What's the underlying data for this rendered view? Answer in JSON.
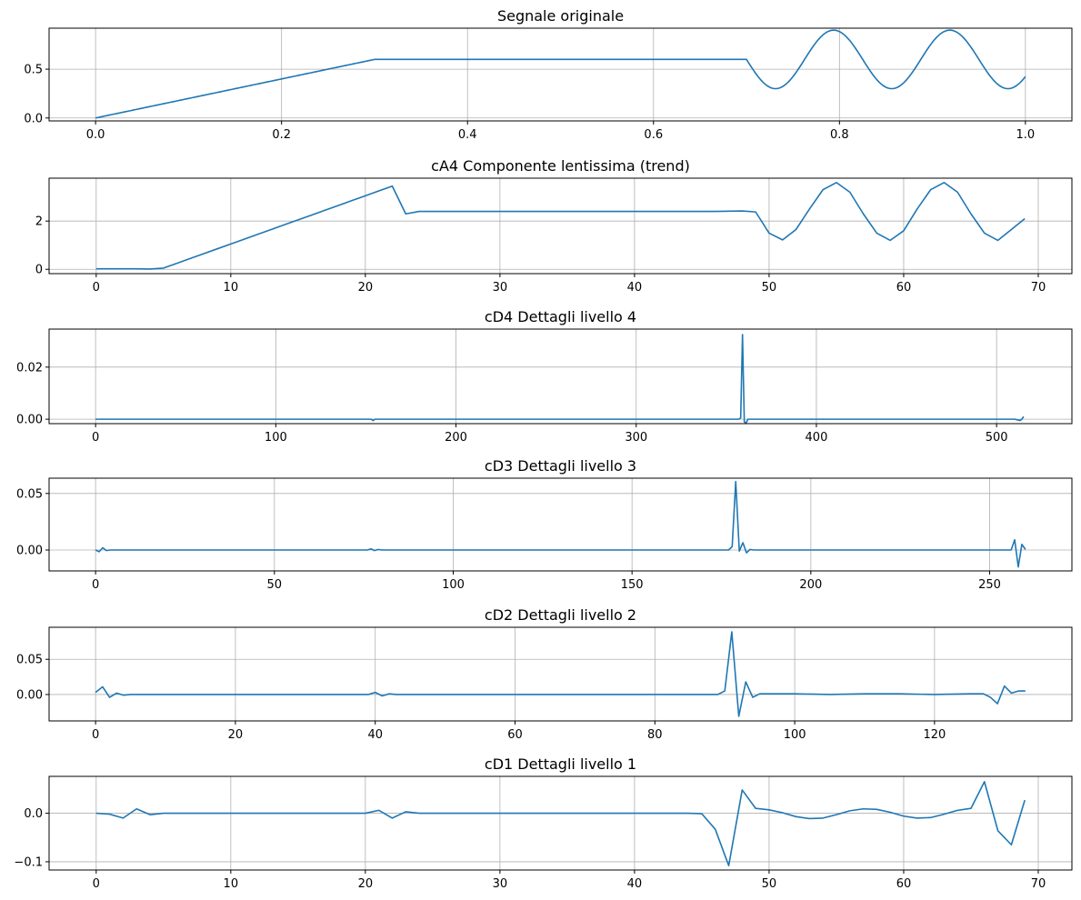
{
  "chart_data": [
    {
      "type": "line",
      "title": "Segnale originale",
      "xlabel": "",
      "ylabel": "",
      "xlim": [
        -0.05,
        1.05
      ],
      "ylim": [
        -0.03,
        0.92
      ],
      "xticks": [
        0.0,
        0.2,
        0.4,
        0.6,
        0.8,
        1.0
      ],
      "xtick_labels": [
        "0.0",
        "0.2",
        "0.4",
        "0.6",
        "0.8",
        "1.0"
      ],
      "yticks": [
        0.0,
        0.5
      ],
      "ytick_labels": [
        "0.0",
        "0.5"
      ],
      "grid": true,
      "series": [
        {
          "name": "segnale",
          "x": [],
          "y": []
        }
      ]
    },
    {
      "type": "line",
      "title": "cA4 Componente lentissima (trend)",
      "xlabel": "",
      "ylabel": "",
      "xlim": [
        -3.5,
        72.5
      ],
      "ylim": [
        -0.18,
        3.78
      ],
      "xticks": [
        0,
        10,
        20,
        30,
        40,
        50,
        60,
        70
      ],
      "xtick_labels": [
        "0",
        "10",
        "20",
        "30",
        "40",
        "50",
        "60",
        "70"
      ],
      "yticks": [
        0,
        2
      ],
      "ytick_labels": [
        "0",
        "2"
      ],
      "grid": true,
      "series": [
        {
          "name": "cA4",
          "x": [
            0,
            1,
            2,
            3,
            4,
            5,
            6,
            7,
            8,
            9,
            10,
            11,
            12,
            13,
            14,
            15,
            16,
            17,
            18,
            19,
            20,
            21,
            22,
            23,
            24,
            25,
            26,
            27,
            28,
            29,
            30,
            31,
            32,
            33,
            34,
            35,
            36,
            37,
            38,
            39,
            40,
            41,
            42,
            43,
            44,
            45,
            46,
            47,
            48,
            49,
            50,
            51,
            52,
            53,
            54,
            55,
            56,
            57,
            58,
            59,
            60,
            61,
            62,
            63,
            64,
            65,
            66,
            67,
            68,
            69
          ],
          "y": [
            0.02,
            0.02,
            0.02,
            0.02,
            0.01,
            0.05,
            0.25,
            0.45,
            0.65,
            0.85,
            1.05,
            1.25,
            1.45,
            1.65,
            1.85,
            2.05,
            2.25,
            2.45,
            2.65,
            2.85,
            3.05,
            3.25,
            3.45,
            2.3,
            2.4,
            2.4,
            2.4,
            2.4,
            2.4,
            2.4,
            2.4,
            2.4,
            2.4,
            2.4,
            2.4,
            2.4,
            2.4,
            2.4,
            2.4,
            2.4,
            2.4,
            2.4,
            2.4,
            2.4,
            2.4,
            2.4,
            2.4,
            2.41,
            2.42,
            2.38,
            1.5,
            1.22,
            1.65,
            2.5,
            3.3,
            3.6,
            3.2,
            2.3,
            1.5,
            1.2,
            1.6,
            2.5,
            3.3,
            3.6,
            3.2,
            2.3,
            1.5,
            1.2,
            1.65,
            2.1
          ]
        }
      ]
    },
    {
      "type": "line",
      "title": "cD4 Dettagli livello 4",
      "xlabel": "",
      "ylabel": "",
      "xlim": [
        -25.8,
        541.8
      ],
      "ylim": [
        -0.0017,
        0.0346
      ],
      "xticks": [
        0,
        100,
        200,
        300,
        400,
        500
      ],
      "xtick_labels": [
        "0",
        "100",
        "200",
        "300",
        "400",
        "500"
      ],
      "yticks": [
        0.0,
        0.02
      ],
      "ytick_labels": [
        "0.00",
        "0.02"
      ],
      "grid": true,
      "series": [
        {
          "name": "cD4",
          "x": [
            0,
            150,
            153,
            154,
            155,
            156,
            157,
            300,
            356,
            357,
            358,
            359,
            360,
            361,
            362,
            363,
            510,
            513,
            514,
            515
          ],
          "y": [
            0,
            0,
            0,
            -0.0005,
            0,
            0,
            0,
            0,
            0,
            0,
            0.0005,
            0.0325,
            -0.001,
            -0.0015,
            0,
            0,
            0,
            -0.0005,
            0,
            0.001
          ]
        }
      ]
    },
    {
      "type": "line",
      "title": "cD3 Dettagli livello 3",
      "xlabel": "",
      "ylabel": "",
      "xlim": [
        -13.0,
        273.0
      ],
      "ylim": [
        -0.0185,
        0.0635
      ],
      "xticks": [
        0,
        50,
        100,
        150,
        200,
        250
      ],
      "xtick_labels": [
        "0",
        "50",
        "100",
        "150",
        "200",
        "250"
      ],
      "yticks": [
        0.0,
        0.05
      ],
      "ytick_labels": [
        "0.00",
        "0.05"
      ],
      "grid": true,
      "series": [
        {
          "name": "cD3",
          "x": [
            0,
            1,
            2,
            3,
            4,
            5,
            6,
            7,
            75,
            76,
            77,
            78,
            79,
            80,
            81,
            176,
            177,
            178,
            179,
            180,
            181,
            182,
            183,
            184,
            185,
            256,
            257,
            258,
            259,
            260
          ],
          "y": [
            0,
            -0.0015,
            0.002,
            -0.0005,
            0,
            0,
            0,
            0,
            0,
            0,
            0.001,
            -0.0005,
            0.0005,
            0,
            0,
            0,
            0,
            0.003,
            0.0605,
            -0.001,
            0.0065,
            -0.0025,
            0.0005,
            0,
            0,
            0,
            0.009,
            -0.015,
            0.005,
            0.0005
          ]
        }
      ]
    },
    {
      "type": "line",
      "title": "cD2 Dettagli livello 2",
      "xlabel": "",
      "ylabel": "",
      "xlim": [
        -6.65,
        139.65
      ],
      "ylim": [
        -0.0375,
        0.0955
      ],
      "xticks": [
        0,
        20,
        40,
        60,
        80,
        100,
        120
      ],
      "xtick_labels": [
        "0",
        "20",
        "40",
        "60",
        "80",
        "100",
        "120"
      ],
      "yticks": [
        0.0,
        0.05
      ],
      "ytick_labels": [
        "0.00",
        "0.05"
      ],
      "grid": true,
      "series": [
        {
          "name": "cD2",
          "x": [
            0,
            1,
            2,
            3,
            4,
            5,
            6,
            38,
            39,
            40,
            41,
            42,
            43,
            44,
            88,
            89,
            90,
            91,
            92,
            93,
            94,
            95,
            96,
            100,
            105,
            110,
            115,
            120,
            125,
            126,
            127,
            128,
            129,
            130,
            131,
            132,
            133
          ],
          "y": [
            0.003,
            0.011,
            -0.004,
            0.002,
            -0.001,
            0,
            0,
            0,
            0,
            0.003,
            -0.002,
            0.001,
            0,
            0,
            0,
            0,
            0.005,
            0.089,
            -0.031,
            0.018,
            -0.004,
            0.001,
            0.001,
            0.001,
            0,
            0.001,
            0.001,
            0,
            0.001,
            0.001,
            0.001,
            -0.004,
            -0.013,
            0.012,
            0.002,
            0.005,
            0.005
          ]
        }
      ]
    },
    {
      "type": "line",
      "title": "cD1 Dettagli livello 1",
      "xlabel": "",
      "ylabel": "",
      "xlim": [
        -3.5,
        72.5
      ],
      "ylim": [
        -0.117,
        0.076
      ],
      "xticks": [
        0,
        10,
        20,
        30,
        40,
        50,
        60,
        70
      ],
      "xtick_labels": [
        "0",
        "10",
        "20",
        "30",
        "40",
        "50",
        "60",
        "70"
      ],
      "yticks": [
        -0.1,
        0.0
      ],
      "ytick_labels": [
        "−0.1",
        "0.0"
      ],
      "grid": true,
      "series": [
        {
          "name": "cD1",
          "x": [
            0,
            1,
            2,
            3,
            4,
            5,
            6,
            7,
            8,
            9,
            10,
            11,
            12,
            13,
            14,
            15,
            16,
            17,
            18,
            19,
            20,
            21,
            22,
            23,
            24,
            25,
            26,
            27,
            28,
            29,
            30,
            31,
            32,
            33,
            34,
            35,
            36,
            37,
            38,
            39,
            40,
            41,
            42,
            43,
            44,
            45,
            46,
            47,
            48,
            49,
            50,
            51,
            52,
            53,
            54,
            55,
            56,
            57,
            58,
            59,
            60,
            61,
            62,
            63,
            64,
            65,
            66,
            67,
            68,
            69
          ],
          "y": [
            0,
            -0.002,
            -0.01,
            0.009,
            -0.003,
            0,
            0,
            0,
            0,
            0,
            0,
            0,
            0,
            0,
            0,
            0,
            0,
            0,
            0,
            0,
            0,
            0.006,
            -0.01,
            0.003,
            0,
            0,
            0,
            0,
            0,
            0,
            0,
            0,
            0,
            0,
            0,
            0,
            0,
            0,
            0,
            0,
            0,
            0,
            0,
            0,
            0,
            -0.001,
            -0.033,
            -0.108,
            0.048,
            0.01,
            0.007,
            0.001,
            -0.007,
            -0.011,
            -0.01,
            -0.003,
            0.005,
            0.009,
            0.008,
            0.002,
            -0.006,
            -0.01,
            -0.009,
            -0.002,
            0.006,
            0.01,
            0.065,
            -0.036,
            -0.065,
            0.027
          ]
        }
      ]
    }
  ]
}
